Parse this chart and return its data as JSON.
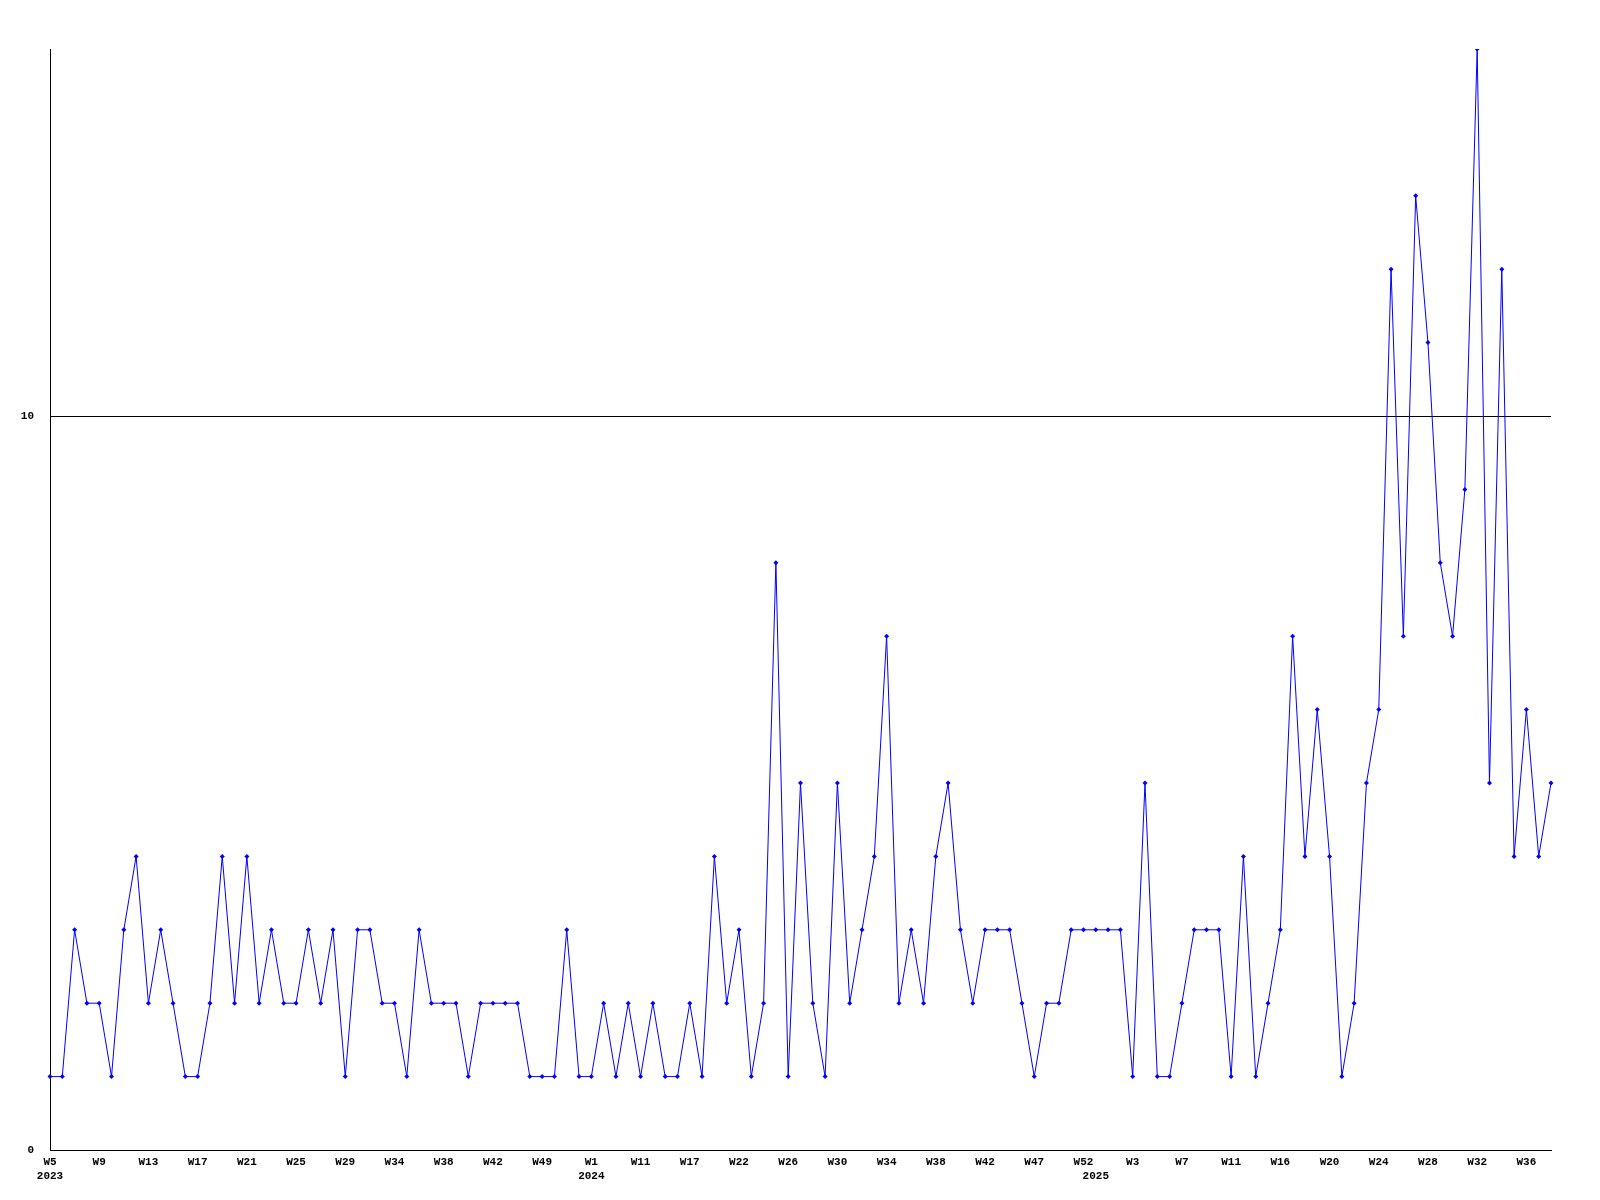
{
  "chart_data": {
    "type": "line",
    "categories": [
      "W5\n2023",
      null,
      null,
      null,
      "W9",
      null,
      null,
      null,
      "W13",
      null,
      null,
      null,
      "W17",
      null,
      null,
      null,
      "W21",
      null,
      null,
      null,
      "W25",
      null,
      null,
      null,
      "W29",
      null,
      null,
      null,
      "W34",
      null,
      null,
      null,
      "W38",
      null,
      null,
      null,
      "W42",
      null,
      null,
      null,
      "W49",
      null,
      null,
      null,
      "W1\n2024",
      null,
      null,
      null,
      "W11",
      null,
      null,
      null,
      "W17",
      null,
      null,
      null,
      "W22",
      null,
      null,
      null,
      "W26",
      null,
      null,
      null,
      "W30",
      null,
      null,
      null,
      "W34",
      null,
      null,
      null,
      "W38",
      null,
      null,
      null,
      "W42",
      null,
      null,
      null,
      "W47",
      null,
      null,
      null,
      "W52",
      "\n2025",
      null,
      null,
      "W3",
      null,
      null,
      null,
      "W7",
      null,
      null,
      null,
      "W11",
      null,
      null,
      null,
      "W16",
      null,
      null,
      null,
      "W20",
      null,
      null,
      null,
      "W24",
      null,
      null,
      null,
      "W28",
      null,
      null,
      null,
      "W32",
      null,
      null,
      null,
      "W36",
      null,
      null
    ],
    "series": [
      {
        "color": "#0000ff",
        "values": [
          1,
          1,
          3,
          2,
          2,
          1,
          3,
          4,
          2,
          3,
          2,
          1,
          1,
          2,
          4,
          2,
          4,
          2,
          3,
          2,
          2,
          3,
          2,
          3,
          1,
          3,
          3,
          2,
          2,
          1,
          3,
          2,
          2,
          2,
          1,
          2,
          2,
          2,
          2,
          1,
          1,
          1,
          3,
          1,
          1,
          2,
          1,
          2,
          1,
          2,
          1,
          1,
          2,
          1,
          4,
          2,
          3,
          1,
          2,
          8,
          1,
          5,
          2,
          1,
          5,
          2,
          3,
          4,
          7,
          2,
          3,
          2,
          4,
          5,
          3,
          2,
          3,
          3,
          3,
          2,
          1,
          2,
          2,
          3,
          3,
          3,
          3,
          3,
          1,
          5,
          1,
          1,
          2,
          3,
          3,
          3,
          1,
          4,
          1,
          2,
          3,
          7,
          4,
          6,
          4,
          1,
          2,
          5,
          6,
          12,
          7,
          13,
          11,
          8,
          7,
          9,
          15,
          5,
          12,
          4,
          6,
          4,
          5
        ]
      }
    ],
    "ylim": [
      0,
      15
    ],
    "yticks": [
      0,
      10
    ],
    "grid": "y",
    "marker": "diamond",
    "line_style": "solid",
    "legend": false
  }
}
